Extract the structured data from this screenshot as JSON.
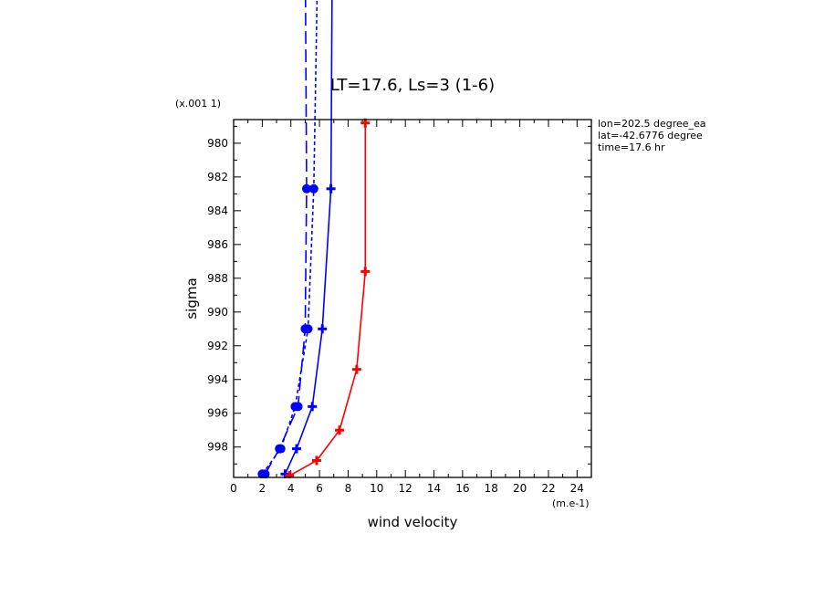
{
  "chart_data": {
    "type": "line",
    "title": "LT=17.6, Ls=3 (1-6)",
    "xlabel": "wind velocity",
    "ylabel": "sigma",
    "x_scale_label": "(m.e-1)",
    "y_scale_label": "(x.001 1)",
    "xlim": [
      0,
      25
    ],
    "ylim": [
      999.8,
      978.6
    ],
    "x_ticks": [
      "0",
      "2",
      "4",
      "6",
      "8",
      "10",
      "12",
      "14",
      "16",
      "18",
      "20",
      "22",
      "24"
    ],
    "y_ticks": [
      "980",
      "982",
      "984",
      "986",
      "988",
      "990",
      "992",
      "994",
      "996",
      "998"
    ],
    "annotations": [
      "lon=202.5 degree_ea",
      "lat=-42.6776 degree",
      "time=17.6 hr"
    ],
    "grid": false,
    "series": [
      {
        "color": "#0000ff",
        "dash": "long-dash",
        "marker": "circle",
        "points": [
          [
            2.2,
            999.6
          ],
          [
            3.2,
            998.1
          ],
          [
            4.5,
            995.6
          ],
          [
            5.0,
            991.0
          ],
          [
            5.1,
            982.7
          ],
          [
            5.0,
            968.0
          ]
        ]
      },
      {
        "color": "#0000ff",
        "dash": "short-dash",
        "marker": "circle",
        "points": [
          [
            2.0,
            999.6
          ],
          [
            3.3,
            998.1
          ],
          [
            4.3,
            995.6
          ],
          [
            5.2,
            991.0
          ],
          [
            5.6,
            982.7
          ],
          [
            5.9,
            968.0
          ]
        ]
      },
      {
        "color": "#0000ff",
        "dash": "solid",
        "marker": "plus",
        "points": [
          [
            3.6,
            999.6
          ],
          [
            4.4,
            998.1
          ],
          [
            5.5,
            995.6
          ],
          [
            6.2,
            991.0
          ],
          [
            6.8,
            982.7
          ],
          [
            6.9,
            968.0
          ]
        ]
      },
      {
        "color": "#ff0000",
        "dash": "solid",
        "marker": "plus",
        "points": [
          [
            3.9,
            999.7
          ],
          [
            5.8,
            998.8
          ],
          [
            7.4,
            997.0
          ],
          [
            8.6,
            993.4
          ],
          [
            9.2,
            987.6
          ],
          [
            9.2,
            978.8
          ]
        ]
      }
    ]
  }
}
